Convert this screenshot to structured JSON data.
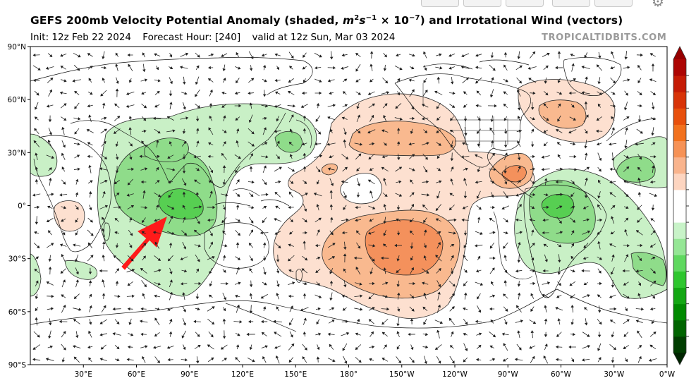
{
  "title": {
    "prefix": "GEFS 200mb Velocity Potential Anomaly (shaded, ",
    "unit_base": "m",
    "unit_exp1": "2",
    "unit_s": "s",
    "unit_exp2": "−1",
    "unit_times": " × 10",
    "unit_exp3": "−7",
    "suffix": ") and Irrotational Wind (vectors)"
  },
  "subtitle": {
    "init": "Init: 12z Feb 22 2024",
    "forecast_hour": "Forecast Hour: [240]",
    "valid": "valid at 12z Sun, Mar 03 2024"
  },
  "brand": "TROPICALTIDBITS.COM",
  "icons": {
    "gear": "gear-icon",
    "annotation": "arrow-annotation"
  },
  "colors": {
    "positive": [
      "#fde0d0",
      "#f9b98f",
      "#f4915c",
      "#e86a2e"
    ],
    "negative": [
      "#c9f0c6",
      "#8fdc8a",
      "#57cf52",
      "#2db52a"
    ],
    "arrow": "#ff1a1a"
  },
  "chart_data": {
    "type": "map",
    "x_ticks": [
      "30°E",
      "60°E",
      "90°E",
      "120°E",
      "150°E",
      "180°",
      "150°W",
      "120°W",
      "90°W",
      "60°W",
      "30°W",
      "0°W"
    ],
    "x_tick_values": [
      30,
      60,
      90,
      120,
      150,
      180,
      210,
      240,
      270,
      300,
      330,
      360
    ],
    "y_ticks": [
      "90°N",
      "60°N",
      "30°N",
      "0°",
      "30°S",
      "60°S",
      "90°S"
    ],
    "y_tick_values": [
      90,
      60,
      30,
      0,
      -30,
      -60,
      -90
    ],
    "xlim": [
      0,
      360
    ],
    "ylim": [
      -90,
      90
    ],
    "colorbar": {
      "levels": [
        "-9",
        "-8",
        "-7",
        "-6",
        "-5",
        "-4",
        "-3",
        "-2",
        "-1",
        "1",
        "2",
        "3",
        "4",
        "5",
        "6",
        "7",
        "8",
        "9"
      ]
    }
  }
}
